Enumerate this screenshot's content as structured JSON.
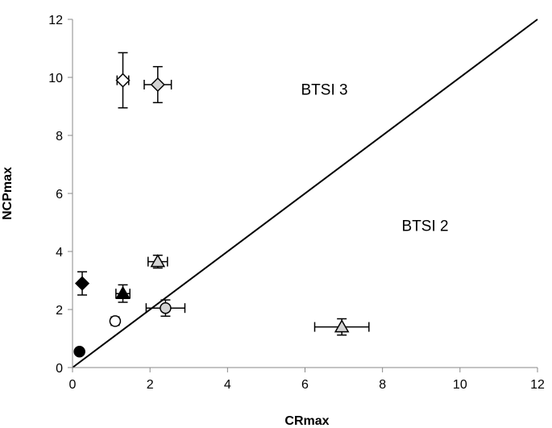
{
  "chart_data": {
    "type": "scatter",
    "xlabel": "CRmax",
    "ylabel": "NCPmax",
    "xlim": [
      0,
      12
    ],
    "ylim": [
      0,
      12
    ],
    "xticks": [
      "0",
      "2",
      "4",
      "6",
      "8",
      "10",
      "12"
    ],
    "yticks": [
      "0",
      "2",
      "4",
      "6",
      "8",
      "10",
      "12"
    ],
    "grid": false,
    "legend": "none",
    "reference_line": {
      "from": [
        0,
        0
      ],
      "to": [
        12,
        12
      ]
    },
    "annotations": [
      {
        "text": "BTSI 3",
        "x": 6.5,
        "y": 9.6
      },
      {
        "text": "BTSI 2",
        "x": 9.1,
        "y": 4.9
      }
    ],
    "points": [
      {
        "x": 1.3,
        "y": 9.9,
        "marker": "diamond",
        "fill": "#ffffff",
        "xerr": 0.15,
        "yerr": 0.95
      },
      {
        "x": 2.2,
        "y": 9.75,
        "marker": "diamond",
        "fill": "#d3d3d3",
        "xerr": 0.35,
        "yerr": 0.62
      },
      {
        "x": 0.25,
        "y": 2.9,
        "marker": "diamond",
        "fill": "#000000",
        "xerr": 0,
        "yerr": 0.4
      },
      {
        "x": 1.3,
        "y": 2.55,
        "marker": "triangle",
        "fill": "#000000",
        "xerr": 0.18,
        "yerr": 0.3
      },
      {
        "x": 2.2,
        "y": 3.65,
        "marker": "triangle",
        "fill": "#d3d3d3",
        "xerr": 0.25,
        "yerr": 0.22
      },
      {
        "x": 6.95,
        "y": 1.4,
        "marker": "triangle",
        "fill": "#d3d3d3",
        "xerr": 0.7,
        "yerr": 0.28
      },
      {
        "x": 1.1,
        "y": 1.6,
        "marker": "circle",
        "fill": "#ffffff",
        "xerr": 0.1,
        "yerr": 0.1
      },
      {
        "x": 2.4,
        "y": 2.05,
        "marker": "circle",
        "fill": "#d3d3d3",
        "xerr": 0.5,
        "yerr": 0.28
      },
      {
        "x": 0.18,
        "y": 0.55,
        "marker": "circle",
        "fill": "#000000",
        "xerr": 0,
        "yerr": 0
      }
    ]
  }
}
